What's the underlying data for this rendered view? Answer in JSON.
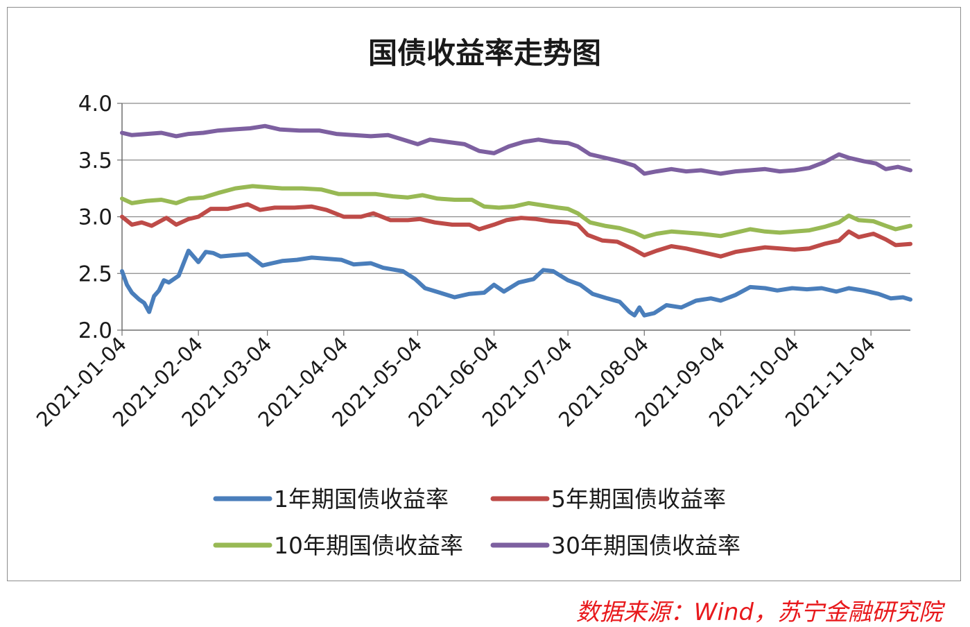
{
  "source": "数据来源：Wind，苏宁金融研究院",
  "chart_data": {
    "type": "line",
    "title": "国债收益率走势图",
    "xlabel": "",
    "ylabel": "",
    "ylim": [
      2.0,
      4.0
    ],
    "yticks": [
      "2.0",
      "2.5",
      "3.0",
      "3.5",
      "4.0"
    ],
    "xlim": [
      "2021-01-04",
      "2021-11-20"
    ],
    "xticks": [
      "2021-01-04",
      "2021-02-04",
      "2021-03-04",
      "2021-04-04",
      "2021-05-04",
      "2021-06-04",
      "2021-07-04",
      "2021-08-04",
      "2021-09-04",
      "2021-10-04",
      "2021-11-04"
    ],
    "grid": "horizontal",
    "legend_position": "bottom",
    "colors": {
      "1y": "#4a7ebb",
      "5y": "#be4b48",
      "10y": "#98b954",
      "30y": "#7d60a0"
    },
    "series": [
      {
        "key": "1y",
        "name": "1年期国债收益率",
        "color": "#4a7ebb",
        "points": [
          [
            "2021-01-04",
            2.52
          ],
          [
            "2021-01-06",
            2.4
          ],
          [
            "2021-01-08",
            2.33
          ],
          [
            "2021-01-11",
            2.27
          ],
          [
            "2021-01-13",
            2.24
          ],
          [
            "2021-01-15",
            2.16
          ],
          [
            "2021-01-17",
            2.3
          ],
          [
            "2021-01-19",
            2.35
          ],
          [
            "2021-01-21",
            2.44
          ],
          [
            "2021-01-23",
            2.42
          ],
          [
            "2021-01-27",
            2.48
          ],
          [
            "2021-01-31",
            2.7
          ],
          [
            "2021-02-04",
            2.6
          ],
          [
            "2021-02-07",
            2.69
          ],
          [
            "2021-02-10",
            2.68
          ],
          [
            "2021-02-13",
            2.65
          ],
          [
            "2021-02-18",
            2.66
          ],
          [
            "2021-02-24",
            2.67
          ],
          [
            "2021-03-02",
            2.57
          ],
          [
            "2021-03-06",
            2.59
          ],
          [
            "2021-03-10",
            2.61
          ],
          [
            "2021-03-16",
            2.62
          ],
          [
            "2021-03-22",
            2.64
          ],
          [
            "2021-03-28",
            2.63
          ],
          [
            "2021-04-03",
            2.62
          ],
          [
            "2021-04-08",
            2.58
          ],
          [
            "2021-04-15",
            2.59
          ],
          [
            "2021-04-20",
            2.55
          ],
          [
            "2021-04-28",
            2.52
          ],
          [
            "2021-05-03",
            2.45
          ],
          [
            "2021-05-07",
            2.37
          ],
          [
            "2021-05-13",
            2.33
          ],
          [
            "2021-05-19",
            2.29
          ],
          [
            "2021-05-25",
            2.32
          ],
          [
            "2021-05-31",
            2.33
          ],
          [
            "2021-06-04",
            2.4
          ],
          [
            "2021-06-08",
            2.34
          ],
          [
            "2021-06-14",
            2.42
          ],
          [
            "2021-06-20",
            2.45
          ],
          [
            "2021-06-24",
            2.53
          ],
          [
            "2021-06-28",
            2.52
          ],
          [
            "2021-07-04",
            2.44
          ],
          [
            "2021-07-09",
            2.4
          ],
          [
            "2021-07-14",
            2.32
          ],
          [
            "2021-07-20",
            2.28
          ],
          [
            "2021-07-25",
            2.25
          ],
          [
            "2021-07-29",
            2.16
          ],
          [
            "2021-07-31",
            2.13
          ],
          [
            "2021-08-02",
            2.2
          ],
          [
            "2021-08-04",
            2.13
          ],
          [
            "2021-08-08",
            2.15
          ],
          [
            "2021-08-13",
            2.22
          ],
          [
            "2021-08-19",
            2.2
          ],
          [
            "2021-08-25",
            2.26
          ],
          [
            "2021-08-31",
            2.28
          ],
          [
            "2021-09-04",
            2.26
          ],
          [
            "2021-09-10",
            2.31
          ],
          [
            "2021-09-16",
            2.38
          ],
          [
            "2021-09-22",
            2.37
          ],
          [
            "2021-09-27",
            2.35
          ],
          [
            "2021-10-03",
            2.37
          ],
          [
            "2021-10-09",
            2.36
          ],
          [
            "2021-10-15",
            2.37
          ],
          [
            "2021-10-21",
            2.34
          ],
          [
            "2021-10-26",
            2.37
          ],
          [
            "2021-11-01",
            2.35
          ],
          [
            "2021-11-07",
            2.32
          ],
          [
            "2021-11-12",
            2.28
          ],
          [
            "2021-11-17",
            2.29
          ],
          [
            "2021-11-20",
            2.27
          ]
        ]
      },
      {
        "key": "5y",
        "name": "5年期国债收益率",
        "color": "#be4b48",
        "points": [
          [
            "2021-01-04",
            3.0
          ],
          [
            "2021-01-08",
            2.93
          ],
          [
            "2021-01-12",
            2.95
          ],
          [
            "2021-01-16",
            2.92
          ],
          [
            "2021-01-22",
            2.99
          ],
          [
            "2021-01-26",
            2.93
          ],
          [
            "2021-01-31",
            2.98
          ],
          [
            "2021-02-04",
            3.0
          ],
          [
            "2021-02-09",
            3.07
          ],
          [
            "2021-02-16",
            3.07
          ],
          [
            "2021-02-24",
            3.11
          ],
          [
            "2021-03-01",
            3.06
          ],
          [
            "2021-03-07",
            3.08
          ],
          [
            "2021-03-15",
            3.08
          ],
          [
            "2021-03-22",
            3.09
          ],
          [
            "2021-03-28",
            3.06
          ],
          [
            "2021-04-04",
            3.0
          ],
          [
            "2021-04-11",
            3.0
          ],
          [
            "2021-04-16",
            3.03
          ],
          [
            "2021-04-23",
            2.97
          ],
          [
            "2021-04-30",
            2.97
          ],
          [
            "2021-05-05",
            2.98
          ],
          [
            "2021-05-11",
            2.95
          ],
          [
            "2021-05-18",
            2.93
          ],
          [
            "2021-05-25",
            2.93
          ],
          [
            "2021-05-29",
            2.89
          ],
          [
            "2021-06-04",
            2.93
          ],
          [
            "2021-06-09",
            2.97
          ],
          [
            "2021-06-15",
            2.99
          ],
          [
            "2021-06-21",
            2.98
          ],
          [
            "2021-06-27",
            2.96
          ],
          [
            "2021-07-04",
            2.95
          ],
          [
            "2021-07-08",
            2.93
          ],
          [
            "2021-07-12",
            2.84
          ],
          [
            "2021-07-18",
            2.79
          ],
          [
            "2021-07-24",
            2.78
          ],
          [
            "2021-07-30",
            2.72
          ],
          [
            "2021-08-04",
            2.66
          ],
          [
            "2021-08-09",
            2.7
          ],
          [
            "2021-08-15",
            2.74
          ],
          [
            "2021-08-21",
            2.72
          ],
          [
            "2021-08-27",
            2.69
          ],
          [
            "2021-09-04",
            2.65
          ],
          [
            "2021-09-10",
            2.69
          ],
          [
            "2021-09-16",
            2.71
          ],
          [
            "2021-09-22",
            2.73
          ],
          [
            "2021-09-28",
            2.72
          ],
          [
            "2021-10-04",
            2.71
          ],
          [
            "2021-10-10",
            2.72
          ],
          [
            "2021-10-16",
            2.76
          ],
          [
            "2021-10-22",
            2.79
          ],
          [
            "2021-10-26",
            2.87
          ],
          [
            "2021-10-30",
            2.82
          ],
          [
            "2021-11-05",
            2.85
          ],
          [
            "2021-11-10",
            2.8
          ],
          [
            "2021-11-14",
            2.75
          ],
          [
            "2021-11-20",
            2.76
          ]
        ]
      },
      {
        "key": "10y",
        "name": "10年期国债收益率",
        "color": "#98b954",
        "points": [
          [
            "2021-01-04",
            3.16
          ],
          [
            "2021-01-08",
            3.12
          ],
          [
            "2021-01-14",
            3.14
          ],
          [
            "2021-01-20",
            3.15
          ],
          [
            "2021-01-26",
            3.12
          ],
          [
            "2021-01-31",
            3.16
          ],
          [
            "2021-02-06",
            3.17
          ],
          [
            "2021-02-12",
            3.21
          ],
          [
            "2021-02-19",
            3.25
          ],
          [
            "2021-02-26",
            3.27
          ],
          [
            "2021-03-04",
            3.26
          ],
          [
            "2021-03-10",
            3.25
          ],
          [
            "2021-03-18",
            3.25
          ],
          [
            "2021-03-26",
            3.24
          ],
          [
            "2021-04-02",
            3.2
          ],
          [
            "2021-04-10",
            3.2
          ],
          [
            "2021-04-17",
            3.2
          ],
          [
            "2021-04-24",
            3.18
          ],
          [
            "2021-04-30",
            3.17
          ],
          [
            "2021-05-06",
            3.19
          ],
          [
            "2021-05-12",
            3.16
          ],
          [
            "2021-05-19",
            3.15
          ],
          [
            "2021-05-26",
            3.15
          ],
          [
            "2021-05-31",
            3.09
          ],
          [
            "2021-06-06",
            3.08
          ],
          [
            "2021-06-12",
            3.09
          ],
          [
            "2021-06-18",
            3.12
          ],
          [
            "2021-06-24",
            3.1
          ],
          [
            "2021-06-30",
            3.08
          ],
          [
            "2021-07-04",
            3.07
          ],
          [
            "2021-07-08",
            3.03
          ],
          [
            "2021-07-13",
            2.95
          ],
          [
            "2021-07-19",
            2.92
          ],
          [
            "2021-07-25",
            2.9
          ],
          [
            "2021-07-31",
            2.86
          ],
          [
            "2021-08-04",
            2.82
          ],
          [
            "2021-08-09",
            2.85
          ],
          [
            "2021-08-15",
            2.87
          ],
          [
            "2021-08-21",
            2.86
          ],
          [
            "2021-08-27",
            2.85
          ],
          [
            "2021-09-04",
            2.83
          ],
          [
            "2021-09-10",
            2.86
          ],
          [
            "2021-09-16",
            2.89
          ],
          [
            "2021-09-22",
            2.87
          ],
          [
            "2021-09-28",
            2.86
          ],
          [
            "2021-10-04",
            2.87
          ],
          [
            "2021-10-10",
            2.88
          ],
          [
            "2021-10-16",
            2.91
          ],
          [
            "2021-10-22",
            2.95
          ],
          [
            "2021-10-26",
            3.01
          ],
          [
            "2021-10-30",
            2.97
          ],
          [
            "2021-11-05",
            2.96
          ],
          [
            "2021-11-10",
            2.92
          ],
          [
            "2021-11-14",
            2.89
          ],
          [
            "2021-11-20",
            2.92
          ]
        ]
      },
      {
        "key": "30y",
        "name": "30年期国债收益率",
        "color": "#7d60a0",
        "points": [
          [
            "2021-01-04",
            3.74
          ],
          [
            "2021-01-08",
            3.72
          ],
          [
            "2021-01-14",
            3.73
          ],
          [
            "2021-01-20",
            3.74
          ],
          [
            "2021-01-26",
            3.71
          ],
          [
            "2021-01-31",
            3.73
          ],
          [
            "2021-02-06",
            3.74
          ],
          [
            "2021-02-12",
            3.76
          ],
          [
            "2021-02-18",
            3.77
          ],
          [
            "2021-02-25",
            3.78
          ],
          [
            "2021-03-03",
            3.8
          ],
          [
            "2021-03-09",
            3.77
          ],
          [
            "2021-03-17",
            3.76
          ],
          [
            "2021-03-25",
            3.76
          ],
          [
            "2021-04-01",
            3.73
          ],
          [
            "2021-04-08",
            3.72
          ],
          [
            "2021-04-15",
            3.71
          ],
          [
            "2021-04-22",
            3.72
          ],
          [
            "2021-04-28",
            3.68
          ],
          [
            "2021-05-04",
            3.64
          ],
          [
            "2021-05-09",
            3.68
          ],
          [
            "2021-05-16",
            3.66
          ],
          [
            "2021-05-23",
            3.64
          ],
          [
            "2021-05-29",
            3.58
          ],
          [
            "2021-06-04",
            3.56
          ],
          [
            "2021-06-10",
            3.62
          ],
          [
            "2021-06-16",
            3.66
          ],
          [
            "2021-06-22",
            3.68
          ],
          [
            "2021-06-28",
            3.66
          ],
          [
            "2021-07-04",
            3.65
          ],
          [
            "2021-07-08",
            3.62
          ],
          [
            "2021-07-13",
            3.55
          ],
          [
            "2021-07-19",
            3.52
          ],
          [
            "2021-07-25",
            3.49
          ],
          [
            "2021-07-31",
            3.45
          ],
          [
            "2021-08-04",
            3.38
          ],
          [
            "2021-08-09",
            3.4
          ],
          [
            "2021-08-15",
            3.42
          ],
          [
            "2021-08-21",
            3.4
          ],
          [
            "2021-08-27",
            3.41
          ],
          [
            "2021-09-04",
            3.38
          ],
          [
            "2021-09-10",
            3.4
          ],
          [
            "2021-09-16",
            3.41
          ],
          [
            "2021-09-22",
            3.42
          ],
          [
            "2021-09-28",
            3.4
          ],
          [
            "2021-10-04",
            3.41
          ],
          [
            "2021-10-10",
            3.43
          ],
          [
            "2021-10-16",
            3.48
          ],
          [
            "2021-10-22",
            3.55
          ],
          [
            "2021-10-26",
            3.52
          ],
          [
            "2021-11-01",
            3.49
          ],
          [
            "2021-11-06",
            3.47
          ],
          [
            "2021-11-10",
            3.42
          ],
          [
            "2021-11-15",
            3.44
          ],
          [
            "2021-11-20",
            3.41
          ]
        ]
      }
    ]
  }
}
